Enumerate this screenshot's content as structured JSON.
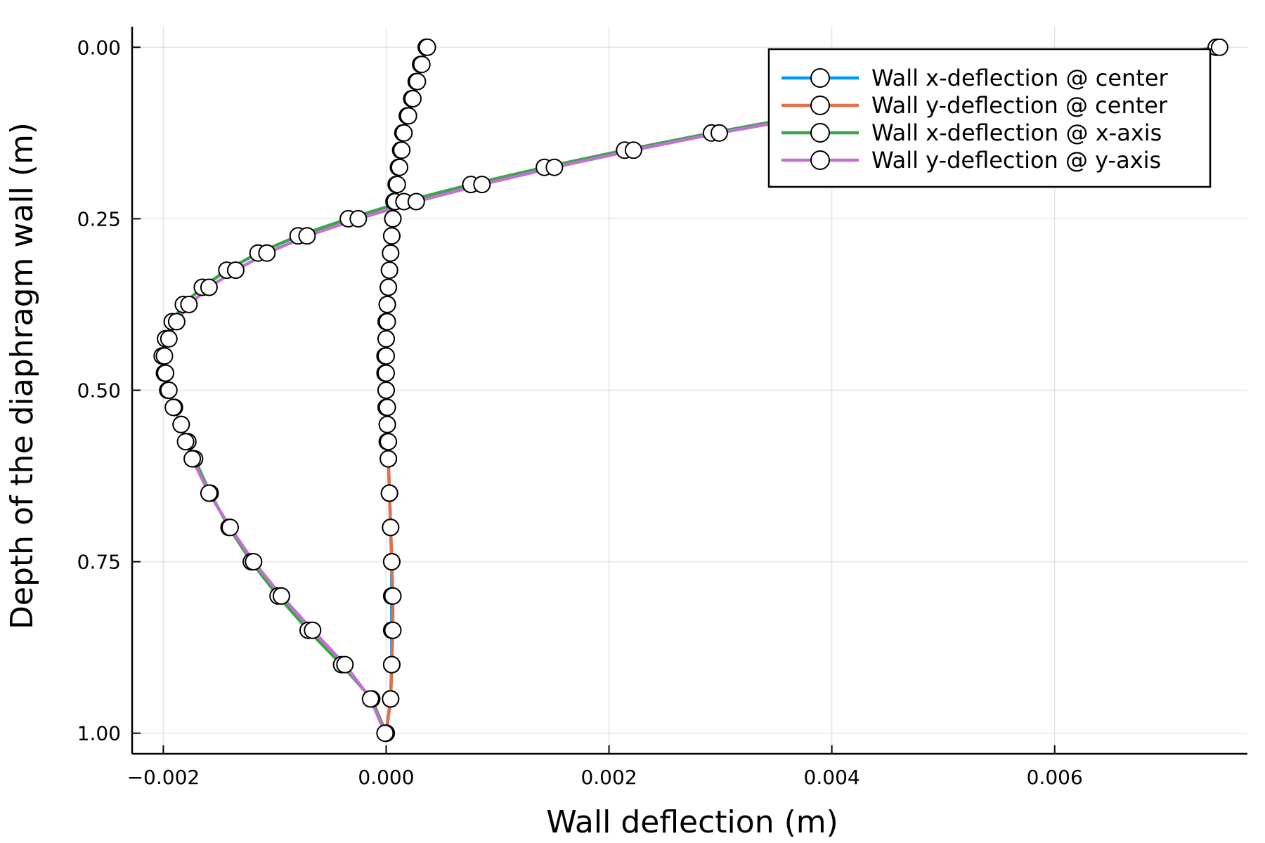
{
  "chart_data": {
    "type": "line",
    "xlabel": "Wall deflection (m)",
    "ylabel": "Depth of the diaphragm wall (m)",
    "xlim": [
      -0.00228,
      0.00773
    ],
    "ylim": [
      -0.03,
      1.03
    ],
    "y_inverted": true,
    "x_ticks": [
      -0.002,
      0.0,
      0.002,
      0.004,
      0.006
    ],
    "x_tick_labels": [
      "−0.002",
      "0.000",
      "0.002",
      "0.004",
      "0.006"
    ],
    "y_ticks": [
      0.0,
      0.25,
      0.5,
      0.75,
      1.0
    ],
    "y_tick_labels": [
      "0.00",
      "0.25",
      "0.50",
      "0.75",
      "1.00"
    ],
    "grid": true,
    "legend_position": "top-right",
    "marker": "circle, white fill, black edge",
    "series": [
      {
        "name": "Wall x-deflection @ center",
        "color": "#009af9",
        "points": [
          [
            0.00036,
            0.0
          ],
          [
            0.00031,
            0.025
          ],
          [
            0.00027,
            0.05
          ],
          [
            0.00023,
            0.075
          ],
          [
            0.00019,
            0.1
          ],
          [
            0.00015,
            0.125
          ],
          [
            0.00013,
            0.15
          ],
          [
            0.00011,
            0.175
          ],
          [
            9e-05,
            0.2
          ],
          [
            7e-05,
            0.225
          ],
          [
            6e-05,
            0.25
          ],
          [
            5e-05,
            0.275
          ],
          [
            4e-05,
            0.3
          ],
          [
            3e-05,
            0.325
          ],
          [
            2e-05,
            0.35
          ],
          [
            1e-05,
            0.375
          ],
          [
            0.0,
            0.4
          ],
          [
            0.0,
            0.425
          ],
          [
            -1e-05,
            0.45
          ],
          [
            -1e-05,
            0.475
          ],
          [
            0.0,
            0.5
          ],
          [
            0.0,
            0.525
          ],
          [
            1e-05,
            0.55
          ],
          [
            1e-05,
            0.575
          ],
          [
            2e-05,
            0.6
          ],
          [
            3e-05,
            0.65
          ],
          [
            4e-05,
            0.7
          ],
          [
            5e-05,
            0.75
          ],
          [
            5e-05,
            0.8
          ],
          [
            5e-05,
            0.85
          ],
          [
            5e-05,
            0.9
          ],
          [
            4e-05,
            0.95
          ],
          [
            0.0,
            1.0
          ]
        ]
      },
      {
        "name": "Wall y-deflection @ center",
        "color": "#e26f46",
        "points": [
          [
            0.00037,
            0.0
          ],
          [
            0.00032,
            0.025
          ],
          [
            0.00028,
            0.05
          ],
          [
            0.00024,
            0.075
          ],
          [
            0.0002,
            0.1
          ],
          [
            0.00016,
            0.125
          ],
          [
            0.00014,
            0.15
          ],
          [
            0.00012,
            0.175
          ],
          [
            0.0001,
            0.2
          ],
          [
            8e-05,
            0.225
          ],
          [
            6e-05,
            0.25
          ],
          [
            5e-05,
            0.275
          ],
          [
            4e-05,
            0.3
          ],
          [
            3e-05,
            0.325
          ],
          [
            2e-05,
            0.35
          ],
          [
            1e-05,
            0.375
          ],
          [
            1e-05,
            0.4
          ],
          [
            0.0,
            0.425
          ],
          [
            0.0,
            0.45
          ],
          [
            0.0,
            0.475
          ],
          [
            0.0,
            0.5
          ],
          [
            1e-05,
            0.525
          ],
          [
            1e-05,
            0.55
          ],
          [
            2e-05,
            0.575
          ],
          [
            2e-05,
            0.6
          ],
          [
            3e-05,
            0.65
          ],
          [
            4e-05,
            0.7
          ],
          [
            5e-05,
            0.75
          ],
          [
            6e-05,
            0.8
          ],
          [
            6e-05,
            0.85
          ],
          [
            5e-05,
            0.9
          ],
          [
            4e-05,
            0.95
          ],
          [
            0.0,
            1.0
          ]
        ]
      },
      {
        "name": "Wall x-deflection @ x-axis",
        "color": "#3da44d",
        "points": [
          [
            0.00745,
            0.0
          ],
          [
            0.0046,
            0.075
          ],
          [
            0.00292,
            0.125
          ],
          [
            0.00214,
            0.15
          ],
          [
            0.00142,
            0.175
          ],
          [
            0.00076,
            0.2
          ],
          [
            0.00016,
            0.225
          ],
          [
            -0.00034,
            0.25
          ],
          [
            -0.00079,
            0.275
          ],
          [
            -0.00115,
            0.3
          ],
          [
            -0.00143,
            0.325
          ],
          [
            -0.00165,
            0.35
          ],
          [
            -0.00182,
            0.375
          ],
          [
            -0.00192,
            0.4
          ],
          [
            -0.00198,
            0.425
          ],
          [
            -0.00201,
            0.45
          ],
          [
            -0.00199,
            0.475
          ],
          [
            -0.00196,
            0.5
          ],
          [
            -0.0019,
            0.525
          ],
          [
            -0.00184,
            0.55
          ],
          [
            -0.00178,
            0.575
          ],
          [
            -0.00172,
            0.6
          ],
          [
            -0.00158,
            0.65
          ],
          [
            -0.00141,
            0.7
          ],
          [
            -0.00121,
            0.75
          ],
          [
            -0.00097,
            0.8
          ],
          [
            -0.0007,
            0.85
          ],
          [
            -0.0004,
            0.9
          ],
          [
            -0.00013,
            0.95
          ],
          [
            0.0,
            1.0
          ]
        ]
      },
      {
        "name": "Wall y-deflection @ y-axis",
        "color": "#c271d2",
        "points": [
          [
            0.00748,
            0.0
          ],
          [
            0.0047,
            0.075
          ],
          [
            0.00299,
            0.125
          ],
          [
            0.00222,
            0.15
          ],
          [
            0.00151,
            0.175
          ],
          [
            0.00086,
            0.2
          ],
          [
            0.00027,
            0.225
          ],
          [
            -0.00025,
            0.25
          ],
          [
            -0.00071,
            0.275
          ],
          [
            -0.00107,
            0.3
          ],
          [
            -0.00135,
            0.325
          ],
          [
            -0.00159,
            0.35
          ],
          [
            -0.00177,
            0.375
          ],
          [
            -0.00188,
            0.4
          ],
          [
            -0.00195,
            0.425
          ],
          [
            -0.00199,
            0.45
          ],
          [
            -0.00198,
            0.475
          ],
          [
            -0.00195,
            0.5
          ],
          [
            -0.00191,
            0.525
          ],
          [
            -0.00184,
            0.55
          ],
          [
            -0.0018,
            0.575
          ],
          [
            -0.00174,
            0.6
          ],
          [
            -0.00159,
            0.65
          ],
          [
            -0.0014,
            0.7
          ],
          [
            -0.00119,
            0.75
          ],
          [
            -0.00094,
            0.8
          ],
          [
            -0.00066,
            0.85
          ],
          [
            -0.00037,
            0.9
          ],
          [
            -0.00014,
            0.95
          ],
          [
            -1e-05,
            1.0
          ]
        ]
      }
    ]
  }
}
